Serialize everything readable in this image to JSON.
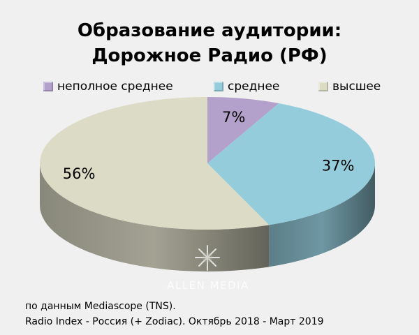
{
  "title_lines": [
    "Образование аудитории:",
    "Дорожное Радио (РФ)"
  ],
  "chart_data": {
    "type": "pie",
    "title": "Образование аудитории: Дорожное Радио (РФ)",
    "categories": [
      "неполное среднее",
      "среднее",
      "высшее"
    ],
    "values": [
      7,
      37,
      56
    ],
    "value_labels": [
      "7%",
      "37%",
      "56%"
    ],
    "colors": [
      "#b3a1cb",
      "#94ccdc",
      "#dcdbc6"
    ],
    "style": "3d",
    "legend": "top"
  },
  "watermark": "ALLEN MEDIA",
  "footer": {
    "line1": "по данным Mediascope (TNS).",
    "line2": "Radio Index - Россия (+ Zodiac). Октябрь 2018 - Март 2019"
  }
}
